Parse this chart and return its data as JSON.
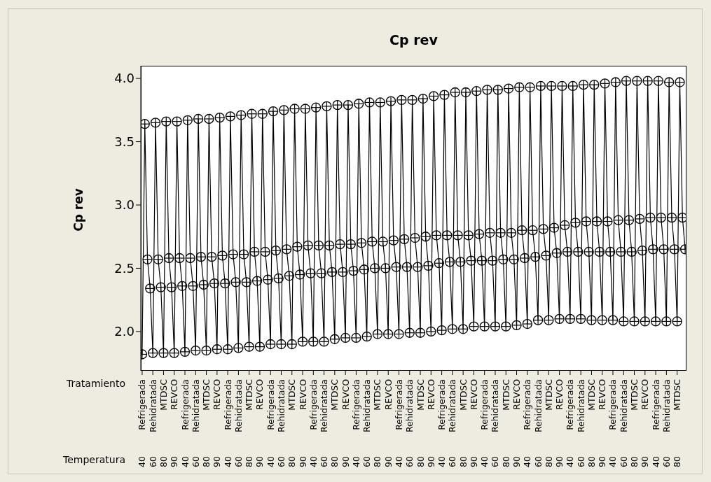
{
  "chart_data": {
    "type": "line",
    "title": "Cp rev",
    "ylabel": "Cp rev",
    "annotations": [
      "Tratamiento",
      "Temperatura"
    ],
    "categories": [
      [
        "Refrigerada",
        "40"
      ],
      null,
      null,
      null,
      [
        "Rehidratada",
        "60"
      ],
      null,
      null,
      null,
      [
        "MTDSC",
        "80"
      ],
      null,
      null,
      null,
      [
        "REVCO",
        "90"
      ],
      null,
      null,
      null,
      [
        "Refrigerada",
        "40"
      ],
      null,
      null,
      null,
      [
        "Rehidratada",
        "60"
      ],
      null,
      null,
      null,
      [
        "MTDSC",
        "80"
      ],
      null,
      null,
      null,
      [
        "REVCO",
        "90"
      ],
      null,
      null,
      null,
      [
        "Refrigerada",
        "40"
      ],
      null,
      null,
      null,
      [
        "Rehidratada",
        "60"
      ],
      null,
      null,
      null,
      [
        "MTDSC",
        "80"
      ],
      null,
      null,
      null,
      [
        "REVCO",
        "90"
      ],
      null,
      null,
      null,
      [
        "Refrigerada",
        "40"
      ],
      null,
      null,
      null,
      [
        "Rehidratada",
        "60"
      ],
      null,
      null,
      null,
      [
        "MTDSC",
        "80"
      ],
      null,
      null,
      null,
      [
        "REVCO",
        "90"
      ],
      null,
      null,
      null,
      [
        "Refrigerada",
        "40"
      ],
      null,
      null,
      null,
      [
        "Rehidratada",
        "60"
      ],
      null,
      null,
      null,
      [
        "MTDSC",
        "80"
      ],
      null,
      null,
      null,
      [
        "REVCO",
        "90"
      ],
      null,
      null,
      null,
      [
        "Refrigerada",
        "40"
      ],
      null,
      null,
      null,
      [
        "Rehidratada",
        "60"
      ],
      null,
      null,
      null,
      [
        "MTDSC",
        "80"
      ],
      null,
      null,
      null,
      [
        "REVCO",
        "90"
      ],
      null,
      null,
      null,
      [
        "Refrigerada",
        "40"
      ],
      null,
      null,
      null,
      [
        "Rehidratada",
        "60"
      ],
      null,
      null,
      null,
      [
        "MTDSC",
        "80"
      ],
      null,
      null,
      null,
      [
        "REVCO",
        "90"
      ],
      null,
      null,
      null,
      [
        "Refrigerada",
        "40"
      ],
      null,
      null,
      null,
      [
        "Rehidratada",
        "60"
      ],
      null,
      null,
      null,
      [
        "MTDSC",
        "80"
      ],
      null,
      null,
      null,
      [
        "REVCO",
        "90"
      ],
      null,
      null,
      null,
      [
        "Refrigerada",
        "40"
      ],
      null,
      null,
      null,
      [
        "Rehidratada",
        "60"
      ],
      null,
      null,
      null,
      [
        "MTDSC",
        "80"
      ],
      null,
      null,
      null,
      [
        "REVCO",
        "90"
      ],
      null,
      null,
      null,
      [
        "Refrigerada",
        "40"
      ],
      null,
      null,
      null,
      [
        "Rehidratada",
        "60"
      ],
      null,
      null,
      null,
      [
        "MTDSC",
        "80"
      ],
      null,
      null,
      null,
      [
        "REVCO",
        "90"
      ],
      null,
      null,
      null,
      [
        "Refrigerada",
        "40"
      ],
      null,
      null,
      null,
      [
        "Rehidratada",
        "60"
      ],
      null,
      null,
      null,
      [
        "MTDSC",
        "80"
      ],
      null,
      null,
      null,
      [
        "REVCO",
        "90"
      ],
      null,
      null,
      null,
      [
        "Refrigerada",
        "40"
      ],
      null,
      null,
      null,
      [
        "Rehidratada",
        "60"
      ],
      null,
      null,
      null,
      [
        "MTDSC",
        "80"
      ],
      null,
      null,
      null,
      [
        "REVCO",
        "90"
      ],
      null,
      null,
      null,
      [
        "Refrigerada",
        "40"
      ],
      null,
      null,
      null,
      [
        "Rehidratada",
        "60"
      ],
      null,
      null,
      null,
      [
        "MTDSC",
        "80"
      ],
      null,
      null,
      null
    ],
    "series": [
      {
        "color": "#000000",
        "values": [
          1.82,
          3.64,
          2.57,
          2.34,
          1.83,
          3.65,
          2.57,
          2.35,
          1.83,
          3.66,
          2.58,
          2.35,
          1.83,
          3.66,
          2.58,
          2.36,
          1.84,
          3.67,
          2.58,
          2.36,
          1.85,
          3.68,
          2.59,
          2.37,
          1.85,
          3.68,
          2.59,
          2.38,
          1.86,
          3.69,
          2.6,
          2.38,
          1.86,
          3.7,
          2.61,
          2.39,
          1.87,
          3.71,
          2.61,
          2.39,
          1.88,
          3.72,
          2.63,
          2.4,
          1.88,
          3.72,
          2.63,
          2.41,
          1.9,
          3.74,
          2.64,
          2.42,
          1.9,
          3.75,
          2.65,
          2.44,
          1.9,
          3.76,
          2.67,
          2.45,
          1.92,
          3.76,
          2.68,
          2.46,
          1.92,
          3.77,
          2.68,
          2.46,
          1.92,
          3.78,
          2.68,
          2.47,
          1.94,
          3.79,
          2.69,
          2.47,
          1.95,
          3.79,
          2.69,
          2.48,
          1.95,
          3.8,
          2.7,
          2.49,
          1.96,
          3.81,
          2.71,
          2.5,
          1.98,
          3.81,
          2.71,
          2.5,
          1.98,
          3.82,
          2.72,
          2.51,
          1.98,
          3.83,
          2.73,
          2.51,
          1.99,
          3.83,
          2.74,
          2.51,
          1.99,
          3.84,
          2.75,
          2.52,
          2.0,
          3.86,
          2.76,
          2.54,
          2.01,
          3.87,
          2.76,
          2.55,
          2.02,
          3.89,
          2.76,
          2.55,
          2.02,
          3.89,
          2.76,
          2.56,
          2.04,
          3.9,
          2.77,
          2.56,
          2.04,
          3.91,
          2.78,
          2.56,
          2.04,
          3.91,
          2.78,
          2.57,
          2.04,
          3.92,
          2.78,
          2.57,
          2.05,
          3.93,
          2.8,
          2.58,
          2.06,
          3.93,
          2.8,
          2.59,
          2.09,
          3.94,
          2.81,
          2.6,
          2.09,
          3.94,
          2.82,
          2.62,
          2.1,
          3.94,
          2.84,
          2.63,
          2.1,
          3.94,
          2.86,
          2.63,
          2.1,
          3.95,
          2.87,
          2.63,
          2.09,
          3.95,
          2.87,
          2.63,
          2.09,
          3.96,
          2.87,
          2.63,
          2.09,
          3.97,
          2.88,
          2.63,
          2.08,
          3.98,
          2.88,
          2.63,
          2.08,
          3.98,
          2.89,
          2.64,
          2.08,
          3.98,
          2.9,
          2.65,
          2.08,
          3.98,
          2.9,
          2.65,
          2.08,
          3.97,
          2.9,
          2.65,
          2.08,
          3.97,
          2.9,
          2.65
        ]
      }
    ],
    "ylim": [
      1.69,
      4.1
    ],
    "yticks": [
      {
        "value": 2,
        "label": "2.0"
      },
      {
        "value": 2.5,
        "label": "2.5"
      },
      {
        "value": 3,
        "label": "3.0"
      },
      {
        "value": 3.5,
        "label": "3.5"
      },
      {
        "value": 4,
        "label": "4.0"
      }
    ],
    "marker": "circle",
    "line_style": "solid",
    "grid": false,
    "legend": false
  }
}
